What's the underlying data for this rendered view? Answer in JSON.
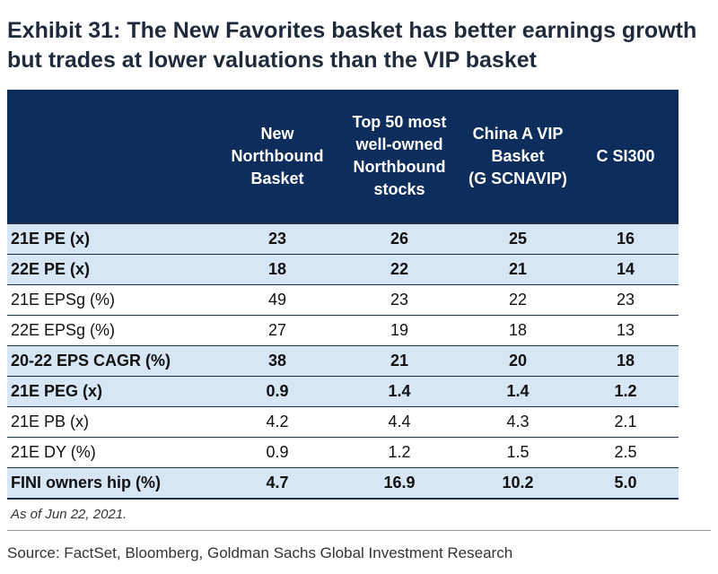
{
  "title": {
    "line1": "Exhibit 31: The New Favorites basket has better earnings growth",
    "line2": "but trades at lower valuations than the VIP basket"
  },
  "chart_data": {
    "type": "table",
    "columns": [
      "",
      "New Northbound Basket",
      "Top 50 most well-owned Northbound stocks",
      "China A VIP Basket (GSCNAVIP)",
      "CSI300"
    ],
    "column_lines": [
      [],
      [
        "New",
        "Northbound",
        "Basket"
      ],
      [
        "Top 50 most",
        "well-owned",
        "Northbound",
        "stocks"
      ],
      [
        "China A VIP",
        "Basket",
        "(G SCNAVIP)"
      ],
      [
        "C SI300"
      ]
    ],
    "rows": [
      {
        "label": "21E PE (x)",
        "values": [
          "23",
          "26",
          "25",
          "16"
        ],
        "bold": true,
        "highlight": true
      },
      {
        "label": "22E PE (x)",
        "values": [
          "18",
          "22",
          "21",
          "14"
        ],
        "bold": true,
        "highlight": true
      },
      {
        "label": "21E EPSg (%)",
        "values": [
          "49",
          "23",
          "22",
          "23"
        ],
        "bold": false,
        "highlight": false
      },
      {
        "label": "22E EPSg (%)",
        "values": [
          "27",
          "19",
          "18",
          "13"
        ],
        "bold": false,
        "highlight": false
      },
      {
        "label": "20-22 EPS CAGR (%)",
        "values": [
          "38",
          "21",
          "20",
          "18"
        ],
        "bold": true,
        "highlight": true
      },
      {
        "label": "21E PEG (x)",
        "values": [
          "0.9",
          "1.4",
          "1.4",
          "1.2"
        ],
        "bold": true,
        "highlight": true
      },
      {
        "label": "21E PB (x)",
        "values": [
          "4.2",
          "4.4",
          "4.3",
          "2.1"
        ],
        "bold": false,
        "highlight": false
      },
      {
        "label": "21E DY (%)",
        "values": [
          "0.9",
          "1.2",
          "1.5",
          "2.5"
        ],
        "bold": false,
        "highlight": false
      },
      {
        "label": "FINI owners hip (%)",
        "values": [
          "4.7",
          "16.9",
          "10.2",
          "5.0"
        ],
        "bold": true,
        "highlight": true
      }
    ],
    "colors": {
      "header_bg": "#0d2d5c",
      "header_text": "#ffffff",
      "highlight_bg": "#d6e6f5"
    }
  },
  "note": "As of Jun 22, 2021.",
  "source": "Source: FactSet, Bloomberg, Goldman Sachs Global Investment Research"
}
